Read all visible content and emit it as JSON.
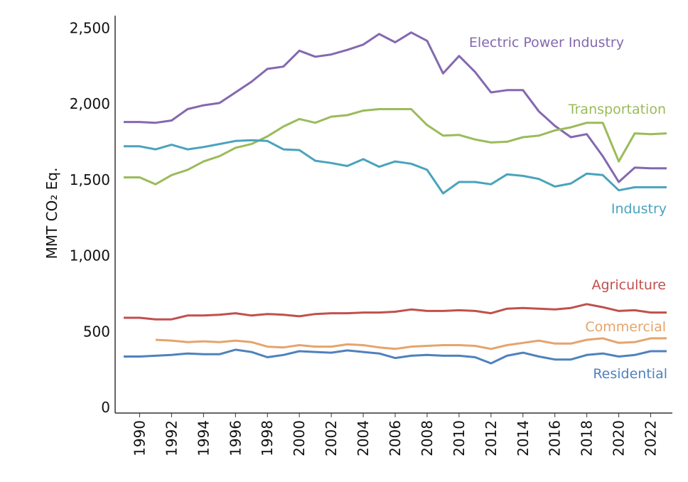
{
  "chart_data": {
    "type": "line",
    "title": "",
    "xlabel": "",
    "ylabel": "MMT CO₂ Eq.",
    "ylim": [
      0,
      2600
    ],
    "y_ticks": [
      0,
      500,
      1000,
      1500,
      2000,
      2500
    ],
    "y_tick_labels": [
      "0",
      "500",
      "1,000",
      "1,500",
      "2,000",
      "2,500"
    ],
    "x_ticks": [
      1990,
      1992,
      1994,
      1996,
      1998,
      2000,
      2002,
      2004,
      2006,
      2008,
      2010,
      2012,
      2014,
      2016,
      2018,
      2020,
      2022
    ],
    "x_tick_labels": [
      "1990",
      "1992",
      "1994",
      "1996",
      "1998",
      "2000",
      "2002",
      "2004",
      "2006",
      "2008",
      "2010",
      "2012",
      "2014",
      "2016",
      "2018",
      "2020",
      "2022"
    ],
    "grid": false,
    "legend": "inline labels",
    "x": [
      1989,
      1990,
      1991,
      1992,
      1993,
      1994,
      1995,
      1996,
      1997,
      1998,
      1999,
      2000,
      2001,
      2002,
      2003,
      2004,
      2005,
      2006,
      2007,
      2008,
      2009,
      2010,
      2011,
      2012,
      2013,
      2014,
      2015,
      2016,
      2017,
      2018,
      2019,
      2020,
      2021,
      2022,
      2023
    ],
    "series": [
      {
        "name": "Electric Power Industry",
        "color": "#8468b0",
        "values": [
          1880,
          1880,
          1875,
          1890,
          1965,
          1990,
          2005,
          2075,
          2145,
          2230,
          2245,
          2350,
          2310,
          2325,
          2355,
          2390,
          2460,
          2405,
          2470,
          2415,
          2200,
          2315,
          2210,
          2075,
          2090,
          2090,
          1950,
          1855,
          1780,
          1800,
          1655,
          1485,
          1580,
          1575,
          1575
        ]
      },
      {
        "name": "Transportation",
        "color": "#9bbb59",
        "values": [
          1515,
          1515,
          1470,
          1530,
          1565,
          1620,
          1655,
          1710,
          1735,
          1785,
          1850,
          1900,
          1875,
          1915,
          1925,
          1955,
          1965,
          1965,
          1965,
          1860,
          1790,
          1795,
          1765,
          1745,
          1750,
          1780,
          1790,
          1825,
          1845,
          1875,
          1875,
          1620,
          1805,
          1800,
          1805
        ]
      },
      {
        "name": "Industry",
        "color": "#4aa3bc",
        "values": [
          1720,
          1720,
          1700,
          1730,
          1700,
          1715,
          1735,
          1755,
          1760,
          1755,
          1700,
          1695,
          1625,
          1610,
          1590,
          1635,
          1585,
          1620,
          1605,
          1565,
          1410,
          1485,
          1485,
          1470,
          1535,
          1525,
          1505,
          1455,
          1475,
          1540,
          1530,
          1430,
          1450,
          1450,
          1450
        ]
      },
      {
        "name": "Agriculture",
        "color": "#c0504d",
        "values": [
          590,
          590,
          580,
          580,
          605,
          605,
          610,
          620,
          605,
          615,
          610,
          600,
          615,
          620,
          620,
          625,
          625,
          630,
          645,
          635,
          635,
          640,
          635,
          620,
          650,
          655,
          650,
          645,
          655,
          680,
          660,
          635,
          640,
          625,
          625
        ]
      },
      {
        "name": "Commercial",
        "color": "#e6a46b",
        "values": [
          null,
          null,
          445,
          440,
          430,
          435,
          430,
          440,
          430,
          400,
          395,
          410,
          400,
          400,
          415,
          410,
          395,
          385,
          400,
          405,
          410,
          410,
          405,
          385,
          410,
          425,
          440,
          420,
          420,
          445,
          455,
          425,
          430,
          455,
          455
        ]
      },
      {
        "name": "Residential",
        "color": "#4f81bd",
        "values": [
          335,
          335,
          340,
          345,
          355,
          350,
          350,
          380,
          365,
          330,
          345,
          370,
          365,
          360,
          375,
          365,
          355,
          325,
          340,
          345,
          340,
          340,
          330,
          290,
          340,
          360,
          335,
          315,
          315,
          345,
          355,
          335,
          345,
          370,
          370
        ]
      }
    ]
  }
}
